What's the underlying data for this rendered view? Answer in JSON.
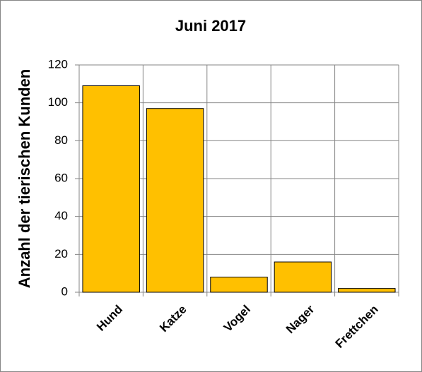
{
  "chart_data": {
    "type": "bar",
    "title": "Juni 2017",
    "y_label": "Anzahl der tierischen Kunden",
    "categories": [
      "Hund",
      "Katze",
      "Vogel",
      "Nager",
      "Frettchen"
    ],
    "values": [
      109,
      97,
      8,
      16,
      2
    ],
    "color": "#ffc000",
    "ylim": [
      0,
      120
    ],
    "yticks": [
      0,
      20,
      40,
      60,
      80,
      100,
      120
    ],
    "grid": true
  }
}
